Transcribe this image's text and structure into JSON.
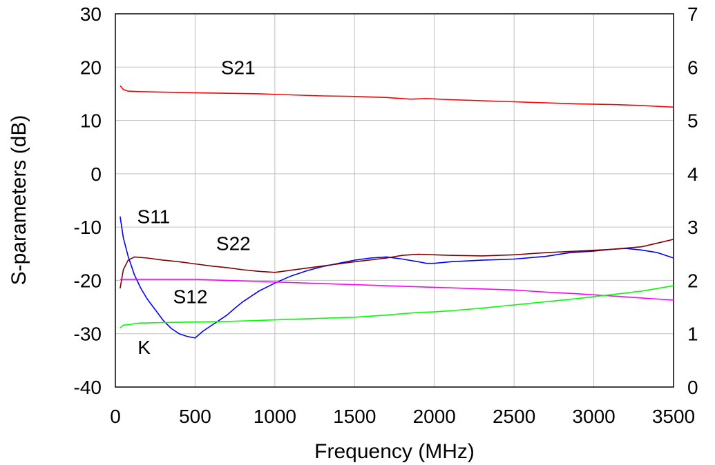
{
  "chart_data": {
    "type": "line",
    "xlabel": "Frequency (MHz)",
    "ylabel": "S-parameters (dB)",
    "y2label": "",
    "xlim": [
      0,
      3500
    ],
    "ylim": [
      -40,
      30
    ],
    "y2lim": [
      0,
      7
    ],
    "grid": true,
    "x_ticks": [
      "0",
      "500",
      "1000",
      "1500",
      "2000",
      "2500",
      "3000",
      "3500"
    ],
    "y_ticks": [
      "-40",
      "-30",
      "-20",
      "-10",
      "0",
      "10",
      "20",
      "30"
    ],
    "y2_ticks": [
      "0",
      "1",
      "2",
      "3",
      "4",
      "5",
      "6",
      "7"
    ],
    "series": [
      {
        "name": "S21",
        "color": "#ff0000",
        "axis": "left",
        "x": [
          30,
          50,
          80,
          150,
          300,
          500,
          700,
          900,
          1100,
          1300,
          1500,
          1700,
          1850,
          1950,
          2100,
          2300,
          2500,
          2700,
          2900,
          3100,
          3300,
          3500
        ],
        "y": [
          16.5,
          15.8,
          15.5,
          15.4,
          15.3,
          15.2,
          15.1,
          15.0,
          14.8,
          14.6,
          14.5,
          14.3,
          14.0,
          14.1,
          13.9,
          13.7,
          13.5,
          13.3,
          13.1,
          13.0,
          12.8,
          12.5
        ]
      },
      {
        "name": "S11",
        "color": "#0000ff",
        "axis": "left",
        "x": [
          30,
          50,
          80,
          120,
          160,
          200,
          250,
          300,
          350,
          400,
          450,
          500,
          550,
          600,
          650,
          700,
          750,
          800,
          900,
          1000,
          1100,
          1200,
          1300,
          1400,
          1500,
          1600,
          1700,
          1800,
          1900,
          1950,
          2000,
          2100,
          2300,
          2500,
          2700,
          2850,
          3000,
          3100,
          3200,
          3300,
          3400,
          3500
        ],
        "y": [
          -8,
          -12,
          -15.5,
          -19,
          -21.5,
          -23.5,
          -25.5,
          -27.5,
          -29,
          -30,
          -30.5,
          -30.8,
          -29.5,
          -28.5,
          -27.5,
          -26.5,
          -25.2,
          -24,
          -22,
          -20.5,
          -19.2,
          -18.2,
          -17.4,
          -16.8,
          -16.2,
          -15.8,
          -15.6,
          -16,
          -16.5,
          -16.8,
          -16.8,
          -16.5,
          -16.2,
          -16,
          -15.5,
          -14.8,
          -14.5,
          -14.2,
          -14,
          -14.3,
          -14.8,
          -15.8
        ]
      },
      {
        "name": "S22",
        "color": "#800000",
        "axis": "left",
        "x": [
          30,
          50,
          80,
          120,
          200,
          300,
          400,
          500,
          600,
          700,
          800,
          900,
          1000,
          1100,
          1300,
          1500,
          1700,
          1800,
          1900,
          2100,
          2300,
          2500,
          2700,
          2900,
          3100,
          3300,
          3400,
          3500
        ],
        "y": [
          -21.5,
          -18,
          -16.2,
          -15.6,
          -15.8,
          -16.2,
          -16.5,
          -16.9,
          -17.3,
          -17.6,
          -18,
          -18.3,
          -18.5,
          -18.1,
          -17.3,
          -16.5,
          -15.8,
          -15.3,
          -15.1,
          -15.3,
          -15.4,
          -15.2,
          -14.8,
          -14.5,
          -14.2,
          -13.7,
          -13,
          -12.3
        ]
      },
      {
        "name": "S12",
        "color": "#ff00ff",
        "axis": "left",
        "x": [
          30,
          100,
          300,
          500,
          700,
          900,
          1100,
          1300,
          1500,
          1700,
          1900,
          2100,
          2300,
          2500,
          2700,
          2900,
          3100,
          3300,
          3500
        ],
        "y": [
          -19.8,
          -19.8,
          -19.8,
          -19.8,
          -20,
          -20.2,
          -20.4,
          -20.6,
          -20.8,
          -21,
          -21.2,
          -21.4,
          -21.6,
          -21.8,
          -22.2,
          -22.5,
          -22.9,
          -23.3,
          -23.7
        ]
      },
      {
        "name": "K",
        "color": "#00ff00",
        "axis": "right",
        "x": [
          30,
          50,
          80,
          150,
          300,
          500,
          700,
          900,
          1100,
          1300,
          1500,
          1700,
          1900,
          2000,
          2100,
          2300,
          2500,
          2700,
          2900,
          3100,
          3300,
          3500
        ],
        "y": [
          1.11,
          1.16,
          1.17,
          1.2,
          1.21,
          1.22,
          1.23,
          1.25,
          1.27,
          1.29,
          1.31,
          1.35,
          1.4,
          1.41,
          1.43,
          1.48,
          1.54,
          1.6,
          1.66,
          1.73,
          1.8,
          1.9
        ]
      }
    ],
    "annotations": [
      {
        "text": "S21",
        "x": 770,
        "y": 20,
        "axis": "left"
      },
      {
        "text": "S11",
        "x": 240,
        "y": -8,
        "axis": "left"
      },
      {
        "text": "S22",
        "x": 740,
        "y": -13,
        "axis": "left"
      },
      {
        "text": "S12",
        "x": 470,
        "y": -23,
        "axis": "left"
      },
      {
        "text": "K",
        "x": 180,
        "y": -32.5,
        "axis": "left"
      }
    ]
  }
}
